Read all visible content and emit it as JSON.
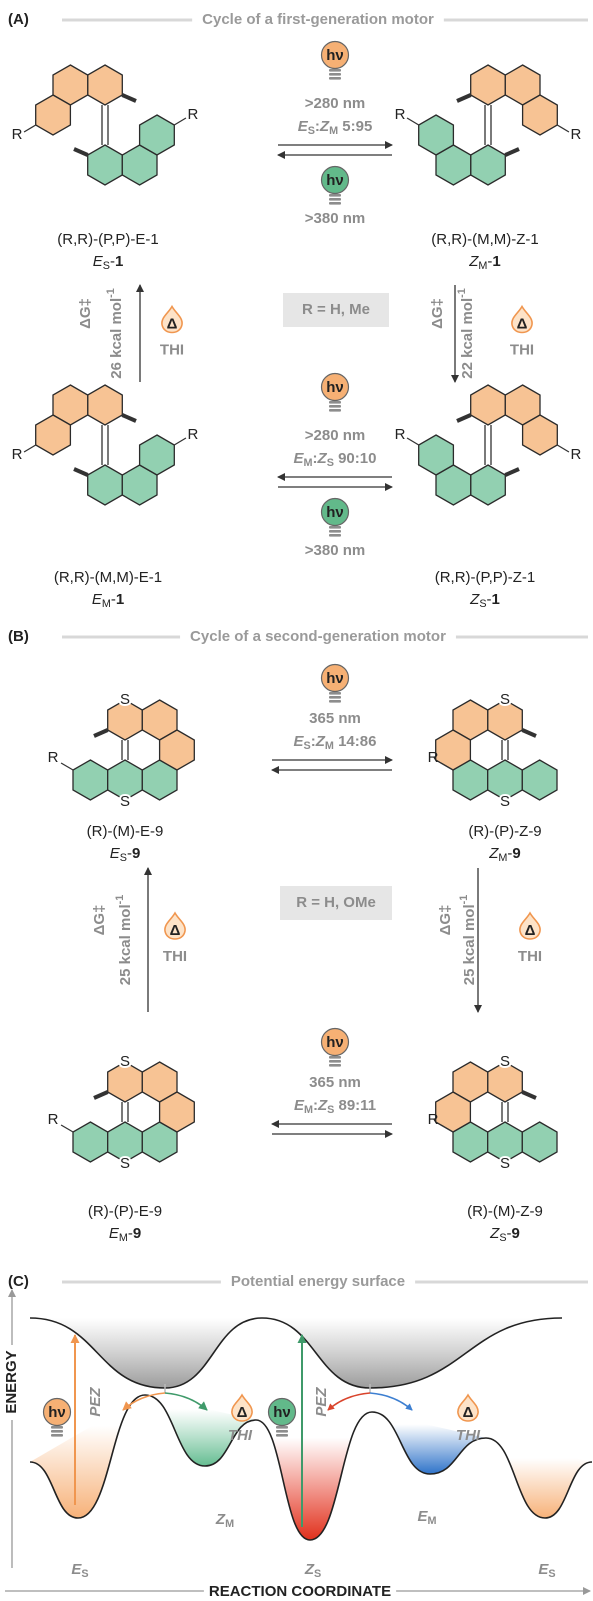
{
  "panel_a": {
    "label": "(A)",
    "title": "Cycle of a first-generation motor",
    "light_symbol": "hν",
    "heat_symbol": "Δ",
    "substituent": "R",
    "note": "R = H, Me",
    "molecules": [
      {
        "name": "(R,R)-(P,P)-E-1",
        "short": [
          "E",
          "S",
          "-",
          "1"
        ]
      },
      {
        "name": "(R,R)-(M,M)-Z-1",
        "short": [
          "Z",
          "M",
          "-",
          "1"
        ]
      },
      {
        "name": "(R,R)-(M,M)-E-1",
        "short": [
          "E",
          "M",
          "-",
          "1"
        ]
      },
      {
        "name": "(R,R)-(P,P)-Z-1",
        "short": [
          "Z",
          "S",
          "-",
          "1"
        ]
      }
    ],
    "photo_steps": [
      {
        "forward": ">280 nm",
        "ratio": [
          "E",
          "S",
          ":",
          "Z",
          "M",
          " 5:95"
        ],
        "reverse": ">380 nm"
      },
      {
        "forward": ">280 nm",
        "ratio": [
          "E",
          "M",
          ":",
          "Z",
          "S",
          " 90:10"
        ],
        "reverse": ">380 nm"
      }
    ],
    "thermal_steps": [
      {
        "barrier_symbol": "ΔG‡",
        "barrier": [
          "26 kcal mol",
          "-1"
        ],
        "label": "THI"
      },
      {
        "barrier_symbol": "ΔG‡",
        "barrier": [
          "22 kcal mol",
          "-1"
        ],
        "label": "THI"
      }
    ]
  },
  "panel_b": {
    "label": "(B)",
    "title": "Cycle of a second-generation motor",
    "light_symbol": "hν",
    "heat_symbol": "Δ",
    "substituent": "R",
    "heteroatom": "S",
    "note": "R = H, OMe",
    "molecules": [
      {
        "name": "(R)-(M)-E-9",
        "short": [
          "E",
          "S",
          "-",
          "9"
        ]
      },
      {
        "name": "(R)-(P)-Z-9",
        "short": [
          "Z",
          "M",
          "-",
          "9"
        ]
      },
      {
        "name": "(R)-(P)-E-9",
        "short": [
          "E",
          "M",
          "-",
          "9"
        ]
      },
      {
        "name": "(R)-(M)-Z-9",
        "short": [
          "Z",
          "S",
          "-",
          "9"
        ]
      }
    ],
    "photo_steps": [
      {
        "forward": "365 nm",
        "ratio": [
          "E",
          "S",
          ":",
          "Z",
          "M",
          " 14:86"
        ]
      },
      {
        "forward": "365 nm",
        "ratio": [
          "E",
          "M",
          ":",
          "Z",
          "S",
          " 89:11"
        ]
      }
    ],
    "thermal_steps": [
      {
        "barrier_symbol": "ΔG‡",
        "barrier": [
          "25 kcal mol",
          "-1"
        ],
        "label": "THI"
      },
      {
        "barrier_symbol": "ΔG‡",
        "barrier": [
          "25 kcal mol",
          "-1"
        ],
        "label": "THI"
      }
    ]
  },
  "panel_c": {
    "label": "(C)",
    "title": "Potential energy surface",
    "y_axis": "ENERGY",
    "x_axis": "REACTION COORDINATE",
    "light_symbol": "hν",
    "heat_symbol": "Δ",
    "excitation_labels": [
      "PEZ",
      "PEZ"
    ],
    "thermal_labels": [
      "THI",
      "THI"
    ],
    "states": [
      [
        "E",
        "S"
      ],
      [
        "Z",
        "M"
      ],
      [
        "Z",
        "S"
      ],
      [
        "E",
        "M"
      ],
      [
        "E",
        "S"
      ]
    ]
  }
}
